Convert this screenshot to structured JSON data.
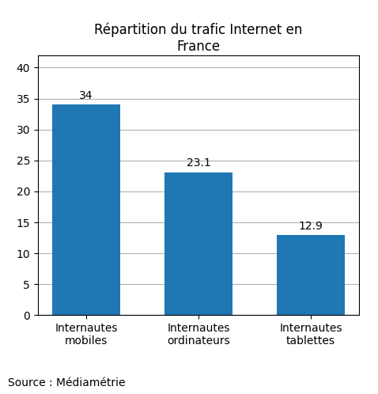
{
  "chart_data": {
    "type": "bar",
    "title": "Répartition du trafic Internet en\nFrance",
    "categories": [
      "Internautes mobiles",
      "Internautes ordinateurs",
      "Internautes tablettes"
    ],
    "values": [
      34,
      23.1,
      12.9
    ],
    "ylim": [
      0,
      42
    ],
    "yticks": [
      0,
      5,
      10,
      15,
      20,
      25,
      30,
      35,
      40
    ],
    "grid": true,
    "data_labels": true,
    "source": "Source : Médiamétrie"
  }
}
